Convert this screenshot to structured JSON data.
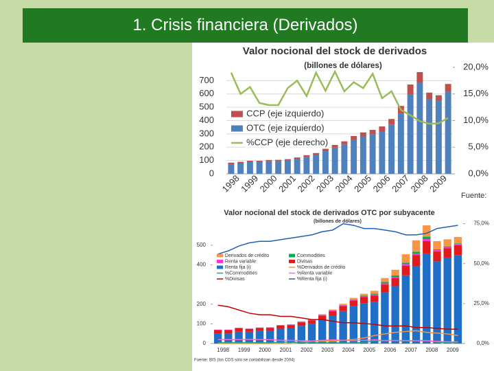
{
  "slide_title": "1. Crisis financiera (Derivados)",
  "chart_data": [
    {
      "type": "combo",
      "title": "Valor nocional del stock de derivados",
      "subtitle": "(billones de dólares)",
      "source": "Fuente:",
      "categories": [
        "1998",
        null,
        "1999",
        null,
        "2000",
        null,
        "2001",
        null,
        "2002",
        null,
        "2003",
        null,
        "2004",
        null,
        "2005",
        null,
        "2006",
        null,
        "2007",
        null,
        "2008",
        null,
        "2009",
        null
      ],
      "series": [
        {
          "name": "CCP (eje izquierdo)",
          "type": "bar",
          "color": "#c0504d",
          "values": [
            12,
            10,
            10,
            10,
            10,
            10,
            10,
            12,
            13,
            14,
            18,
            20,
            24,
            26,
            30,
            32,
            36,
            42,
            60,
            75,
            80,
            50,
            40,
            60
          ]
        },
        {
          "name": "OTC (eje izquierdo)",
          "type": "bar",
          "color": "#4f81bd",
          "values": [
            72,
            80,
            88,
            88,
            94,
            95,
            100,
            111,
            127,
            142,
            170,
            197,
            220,
            258,
            281,
            298,
            320,
            370,
            450,
            596,
            684,
            560,
            550,
            615
          ]
        },
        {
          "name": "%CCP (eje derecho)",
          "type": "line",
          "axis": "y2",
          "color": "#9bbb59",
          "values": [
            19,
            15,
            16.3,
            13.3,
            12.9,
            12.9,
            16.1,
            17.5,
            14.6,
            19,
            15.6,
            19.2,
            15.5,
            17.2,
            16.1,
            18.8,
            14.2,
            15.5,
            12,
            11,
            9.9,
            9.4,
            9.5,
            10.5
          ]
        }
      ],
      "ylim": [
        0,
        800
      ],
      "yticks": [
        0,
        100,
        200,
        300,
        400,
        500,
        600,
        700
      ],
      "y2lim": [
        0,
        20
      ],
      "y2ticks": [
        {
          "value": 0,
          "label": "0,0%"
        },
        {
          "value": 5,
          "label": "5,0%"
        },
        {
          "value": 10,
          "label": "10,0%"
        },
        {
          "value": 15,
          "label": "15,0%"
        },
        {
          "value": 20,
          "label": "20,0%"
        }
      ]
    },
    {
      "type": "combo",
      "title": "Valor nocional del stock de derivados OTC por subyacente",
      "subtitle": "(billones de dólares)",
      "source": "Fuente: BIS (los CDS sólo se contabilizan desde 2004)",
      "categories": [
        "1998",
        null,
        "1999",
        null,
        "2000",
        null,
        "2001",
        null,
        "2002",
        null,
        "2003",
        null,
        "2004",
        null,
        "2005",
        null,
        "2006",
        null,
        "2007",
        null,
        "2008",
        null,
        "2009",
        null
      ],
      "series": [
        {
          "name": "Derivados de crédito",
          "type": "bar",
          "color": "#f79646",
          "values": [
            0,
            0,
            0,
            0,
            0,
            0,
            0,
            0,
            2,
            3,
            3,
            4,
            6,
            8,
            10,
            14,
            20,
            29,
            43,
            58,
            57,
            42,
            36,
            33
          ]
        },
        {
          "name": "Commodities",
          "type": "bar",
          "color": "#00b050",
          "values": [
            0.5,
            0.5,
            0.5,
            0.5,
            0.5,
            0.5,
            1,
            1,
            1,
            1,
            1,
            1,
            1,
            1,
            2,
            5,
            7,
            7,
            7,
            9,
            13,
            4,
            3,
            3
          ]
        },
        {
          "name": "Renta variable",
          "type": "bar",
          "color": "#ff33cc",
          "values": [
            2,
            2,
            2,
            2,
            2,
            2,
            2,
            2,
            2,
            2,
            3,
            4,
            4,
            4,
            5,
            6,
            6,
            7,
            9,
            9,
            10,
            7,
            6,
            6
          ]
        },
        {
          "name": "Divisas",
          "type": "bar",
          "color": "#e31a1c",
          "values": [
            18,
            18,
            18,
            14,
            15,
            15,
            16,
            17,
            18,
            18,
            22,
            24,
            26,
            29,
            31,
            31,
            38,
            40,
            48,
            56,
            63,
            50,
            48,
            50
          ]
        },
        {
          "name": "Renta fija (i)",
          "type": "bar",
          "color": "#1f6fc6",
          "values": [
            50,
            50,
            60,
            60,
            64,
            65,
            75,
            77,
            90,
            100,
            120,
            140,
            165,
            190,
            205,
            212,
            262,
            292,
            347,
            393,
            458,
            418,
            437,
            450
          ]
        },
        {
          "name": "%Derivados de crédito",
          "type": "line",
          "axis": "y2",
          "color": "#f79646",
          "values": [
            0,
            0,
            0,
            0,
            0,
            0,
            0,
            0,
            1,
            1.5,
            1.5,
            1.5,
            2,
            2.5,
            3.5,
            5,
            6,
            7,
            7.5,
            8,
            7,
            6.5,
            6,
            5
          ]
        },
        {
          "name": "%Commodities",
          "type": "line",
          "axis": "y2",
          "color": "#17a589",
          "values": [
            0.6,
            0.6,
            0.6,
            0.6,
            0.5,
            0.5,
            0.9,
            0.9,
            0.7,
            0.6,
            0.5,
            0.5,
            0.4,
            0.4,
            0.7,
            1.6,
            2,
            1.9,
            1.5,
            1.7,
            2.1,
            0.8,
            0.6,
            0.6
          ]
        },
        {
          "name": "%Renta variable",
          "type": "line",
          "axis": "y2",
          "color": "#ff66cc",
          "values": [
            2.5,
            2.5,
            2.5,
            2.6,
            2.5,
            2.4,
            2,
            2,
            1.8,
            1.6,
            2,
            2.3,
            2,
            1.8,
            2,
            2.3,
            1.8,
            1.9,
            1.9,
            1.7,
            1.7,
            1.4,
            1.1,
            1.1
          ]
        },
        {
          "name": "%Divisas",
          "type": "line",
          "axis": "y2",
          "color": "#c00000",
          "values": [
            24,
            23,
            21,
            19,
            18,
            18,
            17,
            17,
            16,
            15,
            15,
            14,
            13,
            13,
            12.5,
            12,
            11,
            11,
            11,
            10,
            10,
            9.5,
            9,
            9
          ]
        },
        {
          "name": "%Renta fija (i)",
          "type": "line",
          "axis": "y2",
          "color": "#1f5fb0",
          "values": [
            56,
            58,
            61,
            63,
            64,
            64,
            65,
            66,
            67,
            68,
            70,
            71,
            75,
            74,
            72,
            72,
            71,
            70,
            68,
            68,
            69,
            72,
            73,
            74
          ]
        }
      ],
      "ylim": [
        0,
        650
      ],
      "yticks": [
        0,
        100,
        200,
        400,
        500
      ],
      "y2lim": [
        0,
        80
      ],
      "y2ticks": [
        {
          "value": 0,
          "label": "0,0%"
        },
        {
          "value": 25,
          "label": "25,0%"
        },
        {
          "value": 50,
          "label": "50,0%"
        },
        {
          "value": 75,
          "label": "75,0%"
        }
      ]
    }
  ]
}
